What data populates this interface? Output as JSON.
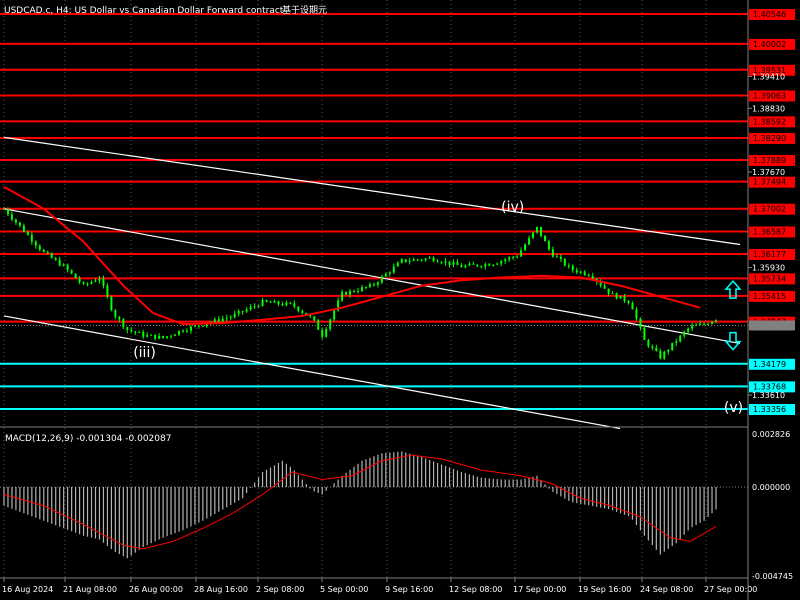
{
  "header": {
    "symbol_title": "USDCAD.c, H4:  US Dollar vs Canadian Dollar Forward contract",
    "cjk_suffix": "基于设期元"
  },
  "colors": {
    "background": "#000000",
    "grid": "#ffffff",
    "candle": "#00ff00",
    "resistance": "#ff0000",
    "support": "#00ffff",
    "ma": "#ff0000",
    "channel": "#ffffff",
    "histogram": "#b4b4b4",
    "signal": "#ff0000",
    "badge_text_on_red": "#000000",
    "badge_text_on_cyan": "#000000"
  },
  "chart_data": [
    {
      "type": "candlestick",
      "title": "",
      "price_axis_ticks": [
        "1.39410",
        "1.38830",
        "1.37670",
        "1.35930",
        "1.33610"
      ],
      "resistance_levels": [
        {
          "label": "1.40546",
          "value": 1.40546
        },
        {
          "label": "1.40002",
          "value": 1.40002
        },
        {
          "label": "1.39531",
          "value": 1.39531
        },
        {
          "label": "1.39063",
          "value": 1.39063
        },
        {
          "label": "1.38592",
          "value": 1.38592
        },
        {
          "label": "1.38290",
          "value": 1.3829
        },
        {
          "label": "1.37889",
          "value": 1.37889
        },
        {
          "label": "1.37494",
          "value": 1.37494
        },
        {
          "label": "1.37002",
          "value": 1.37002
        },
        {
          "label": "1.36587",
          "value": 1.36587
        },
        {
          "label": "1.36177",
          "value": 1.36177
        },
        {
          "label": "1.35734",
          "value": 1.35734
        },
        {
          "label": "1.35415",
          "value": 1.35415
        },
        {
          "label": "1.34947",
          "value": 1.34947
        }
      ],
      "support_levels": [
        {
          "label": "1.34179",
          "value": 1.34179
        },
        {
          "label": "1.33768",
          "value": 1.33768
        },
        {
          "label": "1.33356",
          "value": 1.33356
        }
      ],
      "current_price": 1.34876,
      "x_ticks": [
        "16 Aug 2024",
        "21 Aug 08:00",
        "26 Aug 00:00",
        "28 Aug 16:00",
        "2 Sep 08:00",
        "5 Sep 00:00",
        "9 Sep 16:00",
        "12 Sep 08:00",
        "17 Sep 00:00",
        "19 Sep 16:00",
        "24 Sep 08:00",
        "27 Sep 00:00"
      ],
      "close_path": [
        [
          0,
          1.37
        ],
        [
          10,
          1.366
        ],
        [
          20,
          1.362
        ],
        [
          30,
          1.3595
        ],
        [
          40,
          1.356
        ],
        [
          48,
          1.3575
        ],
        [
          55,
          1.351
        ],
        [
          62,
          1.348
        ],
        [
          70,
          1.347
        ],
        [
          80,
          1.3465
        ],
        [
          90,
          1.348
        ],
        [
          100,
          1.349
        ],
        [
          115,
          1.3505
        ],
        [
          130,
          1.353
        ],
        [
          145,
          1.3525
        ],
        [
          155,
          1.35
        ],
        [
          160,
          1.347
        ],
        [
          170,
          1.3545
        ],
        [
          185,
          1.356
        ],
        [
          200,
          1.3605
        ],
        [
          215,
          1.361
        ],
        [
          230,
          1.3595
        ],
        [
          245,
          1.36
        ],
        [
          258,
          1.3615
        ],
        [
          268,
          1.3665
        ],
        [
          275,
          1.362
        ],
        [
          285,
          1.359
        ],
        [
          295,
          1.358
        ],
        [
          305,
          1.3545
        ],
        [
          315,
          1.353
        ],
        [
          322,
          1.346
        ],
        [
          330,
          1.343
        ],
        [
          338,
          1.346
        ],
        [
          345,
          1.3485
        ],
        [
          352,
          1.349
        ],
        [
          358,
          1.35
        ]
      ],
      "moving_average": [
        [
          0,
          1.374
        ],
        [
          20,
          1.37
        ],
        [
          40,
          1.364
        ],
        [
          60,
          1.356
        ],
        [
          75,
          1.351
        ],
        [
          90,
          1.349
        ],
        [
          110,
          1.3492
        ],
        [
          130,
          1.3498
        ],
        [
          150,
          1.3505
        ],
        [
          170,
          1.352
        ],
        [
          190,
          1.354
        ],
        [
          210,
          1.356
        ],
        [
          230,
          1.357
        ],
        [
          250,
          1.3575
        ],
        [
          270,
          1.3578
        ],
        [
          290,
          1.3575
        ],
        [
          310,
          1.356
        ],
        [
          330,
          1.354
        ],
        [
          350,
          1.352
        ]
      ],
      "wave_labels": [
        {
          "text": "(iii)",
          "at": [
            70,
            1.343
          ]
        },
        {
          "text": "(iv)",
          "at": [
            255,
            1.3695
          ]
        },
        {
          "text": "(v)",
          "at": [
            367,
            1.333
          ]
        }
      ],
      "arrows": [
        {
          "direction": "up",
          "at_price": 1.3552
        },
        {
          "direction": "down",
          "at_price": 1.346
        }
      ]
    },
    {
      "type": "bar",
      "title": "MACD(12,26,9) -0.001304 -0.002087",
      "indicator_label": "MACD(12,26,9)",
      "macd_value": "-0.001304",
      "signal_value": "-0.002087",
      "y_ticks": [
        "0.002826",
        "0.000000",
        "-0.004745"
      ],
      "ylim": [
        -0.004745,
        0.002826
      ],
      "histogram": [
        [
          0,
          -0.001
        ],
        [
          10,
          -0.0014
        ],
        [
          20,
          -0.0018
        ],
        [
          30,
          -0.0022
        ],
        [
          40,
          -0.0026
        ],
        [
          48,
          -0.0028
        ],
        [
          55,
          -0.0034
        ],
        [
          62,
          -0.0038
        ],
        [
          70,
          -0.0032
        ],
        [
          80,
          -0.0027
        ],
        [
          90,
          -0.0023
        ],
        [
          100,
          -0.0018
        ],
        [
          110,
          -0.0012
        ],
        [
          120,
          -0.0006
        ],
        [
          130,
          0.0008
        ],
        [
          140,
          0.0014
        ],
        [
          145,
          0.001
        ],
        [
          150,
          0.0004
        ],
        [
          155,
          -0.0002
        ],
        [
          160,
          -0.0004
        ],
        [
          170,
          0.0006
        ],
        [
          180,
          0.0014
        ],
        [
          190,
          0.0018
        ],
        [
          200,
          0.0019
        ],
        [
          210,
          0.0016
        ],
        [
          220,
          0.0012
        ],
        [
          230,
          0.0008
        ],
        [
          240,
          0.0005
        ],
        [
          250,
          0.0004
        ],
        [
          260,
          0.0004
        ],
        [
          268,
          0.0006
        ],
        [
          275,
          -0.0002
        ],
        [
          285,
          -0.0008
        ],
        [
          295,
          -0.001
        ],
        [
          305,
          -0.0012
        ],
        [
          315,
          -0.0016
        ],
        [
          322,
          -0.0026
        ],
        [
          330,
          -0.0036
        ],
        [
          338,
          -0.003
        ],
        [
          345,
          -0.0022
        ],
        [
          352,
          -0.0018
        ],
        [
          358,
          -0.0012
        ]
      ],
      "signal_line": [
        [
          0,
          -0.0004
        ],
        [
          20,
          -0.001
        ],
        [
          40,
          -0.002
        ],
        [
          60,
          -0.0031
        ],
        [
          70,
          -0.0033
        ],
        [
          85,
          -0.0029
        ],
        [
          100,
          -0.0022
        ],
        [
          115,
          -0.0014
        ],
        [
          130,
          -0.0004
        ],
        [
          145,
          0.0008
        ],
        [
          160,
          0.0004
        ],
        [
          175,
          0.0006
        ],
        [
          190,
          0.0014
        ],
        [
          205,
          0.0017
        ],
        [
          220,
          0.0015
        ],
        [
          240,
          0.0009
        ],
        [
          260,
          0.0006
        ],
        [
          275,
          0.0002
        ],
        [
          290,
          -0.0006
        ],
        [
          305,
          -0.001
        ],
        [
          320,
          -0.0016
        ],
        [
          335,
          -0.0027
        ],
        [
          345,
          -0.0029
        ],
        [
          358,
          -0.0021
        ]
      ]
    }
  ]
}
